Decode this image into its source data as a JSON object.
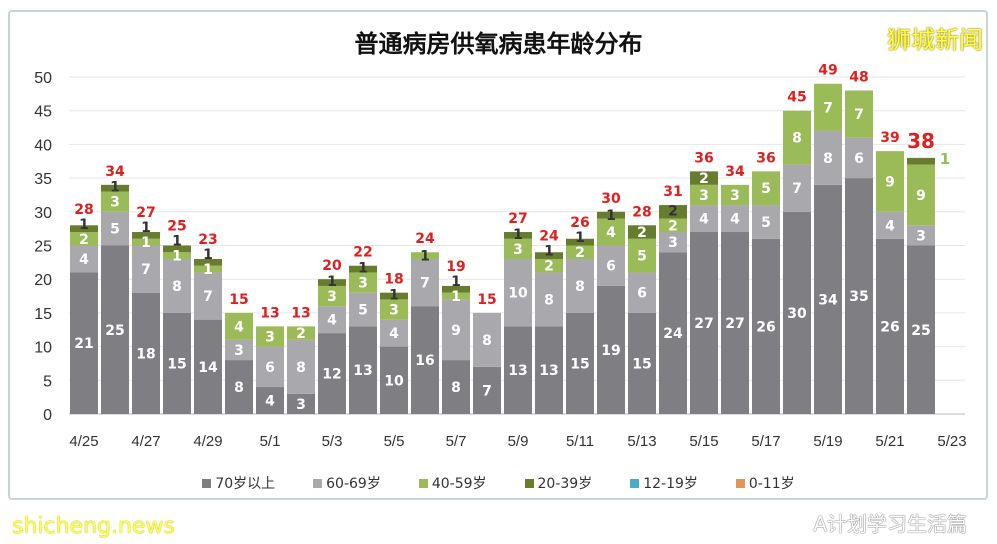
{
  "chart_data": {
    "type": "bar",
    "stacked": true,
    "title": "普通病房供氧病患年龄分布",
    "categories": [
      "4/25",
      "4/26",
      "4/27",
      "4/28",
      "4/29",
      "4/30",
      "5/1",
      "5/2",
      "5/3",
      "5/4",
      "5/5",
      "5/6",
      "5/7",
      "5/8",
      "5/9",
      "5/10",
      "5/11",
      "5/12",
      "5/13",
      "5/14",
      "5/15",
      "5/16",
      "5/17",
      "5/18",
      "5/19",
      "5/20",
      "5/21",
      "5/22",
      "5/23"
    ],
    "x_tick_labels": [
      "4/25",
      "4/27",
      "4/29",
      "5/1",
      "5/3",
      "5/5",
      "5/7",
      "5/9",
      "5/11",
      "5/13",
      "5/15",
      "5/17",
      "5/19",
      "5/21",
      "5/23"
    ],
    "ylim": [
      0,
      50
    ],
    "y_ticks": [
      0,
      5,
      10,
      15,
      20,
      25,
      30,
      35,
      40,
      45,
      50
    ],
    "grid": true,
    "legend_position": "bottom",
    "series": [
      {
        "name": "70岁以上",
        "color": "#7f7e82",
        "values": [
          21,
          25,
          18,
          15,
          14,
          8,
          4,
          3,
          12,
          13,
          10,
          16,
          8,
          7,
          13,
          13,
          15,
          19,
          15,
          24,
          27,
          27,
          26,
          30,
          34,
          35,
          26,
          25,
          null
        ]
      },
      {
        "name": "60-69岁",
        "color": "#a9a8ac",
        "values": [
          4,
          5,
          7,
          8,
          7,
          3,
          6,
          8,
          4,
          5,
          4,
          7,
          9,
          8,
          10,
          8,
          8,
          6,
          6,
          3,
          4,
          4,
          5,
          7,
          8,
          6,
          4,
          3,
          null
        ]
      },
      {
        "name": "40-59岁",
        "color": "#9bbb59",
        "values": [
          2,
          3,
          1,
          1,
          1,
          4,
          3,
          2,
          3,
          3,
          3,
          1,
          1,
          0,
          3,
          2,
          2,
          4,
          5,
          2,
          3,
          3,
          5,
          8,
          7,
          7,
          9,
          9,
          null
        ]
      },
      {
        "name": "20-39岁",
        "color": "#687c30",
        "values": [
          1,
          1,
          1,
          1,
          1,
          0,
          0,
          0,
          1,
          1,
          1,
          0,
          1,
          0,
          1,
          1,
          1,
          1,
          2,
          2,
          2,
          0,
          0,
          0,
          0,
          0,
          0,
          1,
          null
        ]
      },
      {
        "name": "12-19岁",
        "color": "#4bacc6",
        "values": [
          0,
          0,
          0,
          0,
          0,
          0,
          0,
          0,
          0,
          0,
          0,
          0,
          0,
          0,
          0,
          0,
          0,
          0,
          0,
          0,
          0,
          0,
          0,
          0,
          0,
          0,
          0,
          0,
          null
        ]
      },
      {
        "name": "0-11岁",
        "color": "#e0965a",
        "values": [
          0,
          0,
          0,
          0,
          0,
          0,
          0,
          0,
          0,
          0,
          0,
          0,
          0,
          0,
          0,
          0,
          0,
          0,
          0,
          0,
          0,
          0,
          0,
          0,
          0,
          0,
          0,
          0,
          null
        ]
      }
    ],
    "totals": [
      28,
      34,
      27,
      25,
      23,
      15,
      13,
      13,
      20,
      22,
      18,
      24,
      19,
      15,
      27,
      24,
      26,
      30,
      28,
      31,
      36,
      34,
      36,
      45,
      49,
      48,
      39,
      38,
      null
    ],
    "total_label_color": "#e02020"
  },
  "watermarks": {
    "top_right": "狮城新闻",
    "bottom_left": "shicheng.news",
    "bottom_right": "A计划学习生活篇"
  }
}
